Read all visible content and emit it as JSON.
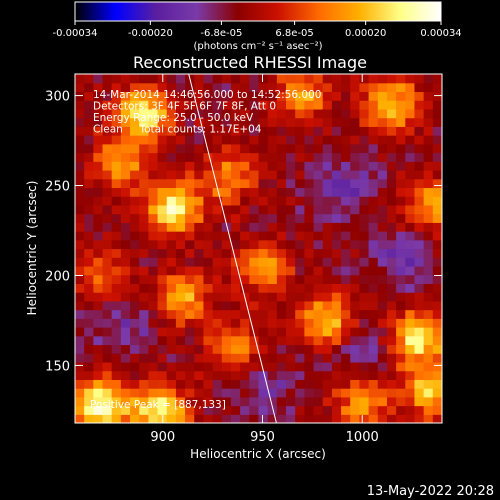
{
  "chart_data": {
    "type": "heatmap",
    "title": "Reconstructed RHESSI Image",
    "xlabel": "Heliocentric X (arcsec)",
    "ylabel": "Heliocentric Y (arcsec)",
    "xlim": [
      856,
      1040
    ],
    "ylim": [
      118,
      312
    ],
    "xticks": [
      900,
      950,
      1000
    ],
    "yticks": [
      150,
      200,
      250,
      300
    ],
    "grid": false,
    "colorbar": {
      "min": -0.00034,
      "max": 0.00034,
      "tick_values": [
        -0.00034,
        -0.0002,
        -6.8e-05,
        6.8e-05,
        0.0002,
        0.00034
      ],
      "tick_labels": [
        "-0.00034",
        "-0.00020",
        "-6.8e-05",
        "6.8e-05",
        "0.00020",
        "0.00034"
      ],
      "unit_label": "(photons cm⁻² s⁻¹ asec⁻²)",
      "colormap": [
        "#000000",
        "#0000ff",
        "#5a1fa0",
        "#7a3aa8",
        "#8b0000",
        "#cc1100",
        "#ff6a00",
        "#ffb000",
        "#ffff88",
        "#ffffff"
      ]
    },
    "annotations": [
      "14-Mar-2014 14:46:56.000 to 14:52:56.000",
      "Detectors: 3F 4F 5F 6F 7F 8F, Att 0",
      "Energy Range: 25.0 - 50.0 keV",
      "Clean     Total counts: 1.17E+04",
      "Positive Peak = [887,133]"
    ],
    "limb_line": {
      "x": [
        913,
        957
      ],
      "y": [
        312,
        118
      ]
    },
    "grid_cells": 40,
    "hotspots": [
      {
        "x": 890,
        "y": 290,
        "value": 0.0003
      },
      {
        "x": 878,
        "y": 262,
        "value": 0.0002
      },
      {
        "x": 905,
        "y": 238,
        "value": 0.00031
      },
      {
        "x": 910,
        "y": 188,
        "value": 0.00022
      },
      {
        "x": 933,
        "y": 255,
        "value": 0.00017
      },
      {
        "x": 970,
        "y": 300,
        "value": 0.0002
      },
      {
        "x": 1015,
        "y": 295,
        "value": 0.00025
      },
      {
        "x": 1035,
        "y": 240,
        "value": 0.00022
      },
      {
        "x": 950,
        "y": 205,
        "value": 0.0002
      },
      {
        "x": 983,
        "y": 175,
        "value": 0.00025
      },
      {
        "x": 1028,
        "y": 165,
        "value": 0.0003
      },
      {
        "x": 1035,
        "y": 135,
        "value": 0.00025
      },
      {
        "x": 868,
        "y": 128,
        "value": 0.00034
      },
      {
        "x": 898,
        "y": 125,
        "value": 0.00032
      },
      {
        "x": 935,
        "y": 160,
        "value": 0.00018
      },
      {
        "x": 1000,
        "y": 130,
        "value": 0.0002
      },
      {
        "x": 870,
        "y": 200,
        "value": 0.00015
      }
    ],
    "coldspots": [
      {
        "x": 990,
        "y": 250,
        "value": -0.00012
      },
      {
        "x": 1000,
        "y": 160,
        "value": -0.0001
      },
      {
        "x": 880,
        "y": 175,
        "value": -9e-05
      },
      {
        "x": 950,
        "y": 135,
        "value": -8e-05
      },
      {
        "x": 1020,
        "y": 210,
        "value": -0.0001
      }
    ]
  },
  "footer": {
    "timestamp": "13-May-2022 20:28"
  }
}
